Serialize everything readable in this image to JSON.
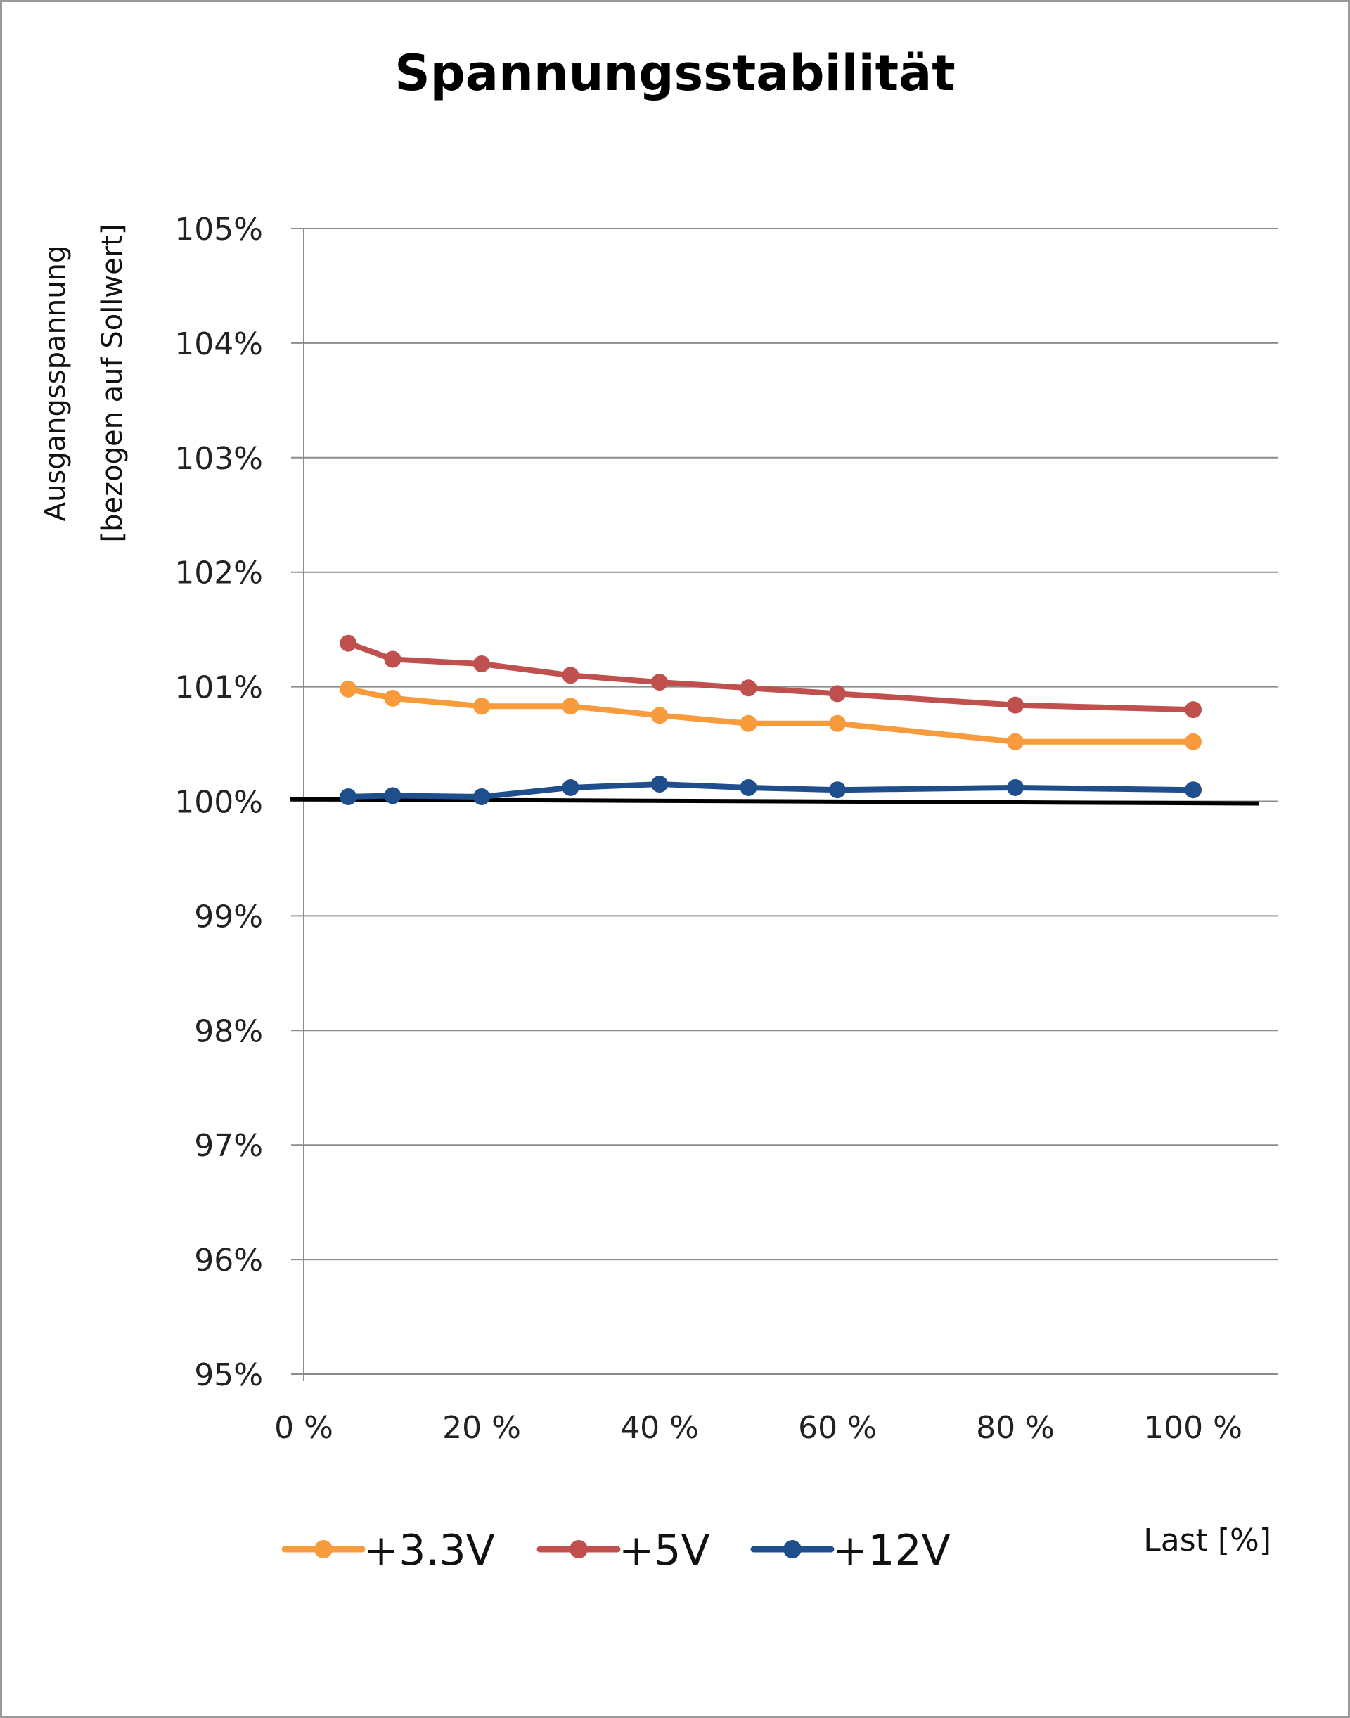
{
  "chart_data": {
    "type": "line",
    "title": "Spannungsstabilität",
    "ylabel_lines": [
      "Ausgangsspannung",
      "[bezogen auf Sollwert]"
    ],
    "xlabel": "Last [%]",
    "x_tick_labels": [
      "0 %",
      "20 %",
      "40 %",
      "60 %",
      "80 %",
      "100 %"
    ],
    "x_ticks": [
      0,
      20,
      40,
      60,
      80,
      100
    ],
    "xlim": [
      0,
      110
    ],
    "y_tick_labels": [
      "95%",
      "96%",
      "97%",
      "98%",
      "99%",
      "100%",
      "101%",
      "102%",
      "103%",
      "104%",
      "105%"
    ],
    "y_ticks": [
      95,
      96,
      97,
      98,
      99,
      100,
      101,
      102,
      103,
      104,
      105
    ],
    "ylim": [
      95,
      105
    ],
    "grid": "horizontal",
    "legend": "bottom",
    "reference_line": 100,
    "x": [
      5,
      10,
      20,
      30,
      40,
      50,
      60,
      80,
      100
    ],
    "series": [
      {
        "name": "+3.3V",
        "color": "#f79b3c",
        "values": [
          100.98,
          100.9,
          100.83,
          100.83,
          100.75,
          100.68,
          100.68,
          100.52,
          100.52
        ]
      },
      {
        "name": "+5V",
        "color": "#c0504d",
        "values": [
          101.38,
          101.24,
          101.2,
          101.1,
          101.04,
          100.99,
          100.94,
          100.84,
          100.8
        ]
      },
      {
        "name": "+12V",
        "color": "#1f4e8c",
        "values": [
          100.04,
          100.05,
          100.04,
          100.12,
          100.15,
          100.12,
          100.1,
          100.12,
          100.1
        ]
      }
    ]
  }
}
